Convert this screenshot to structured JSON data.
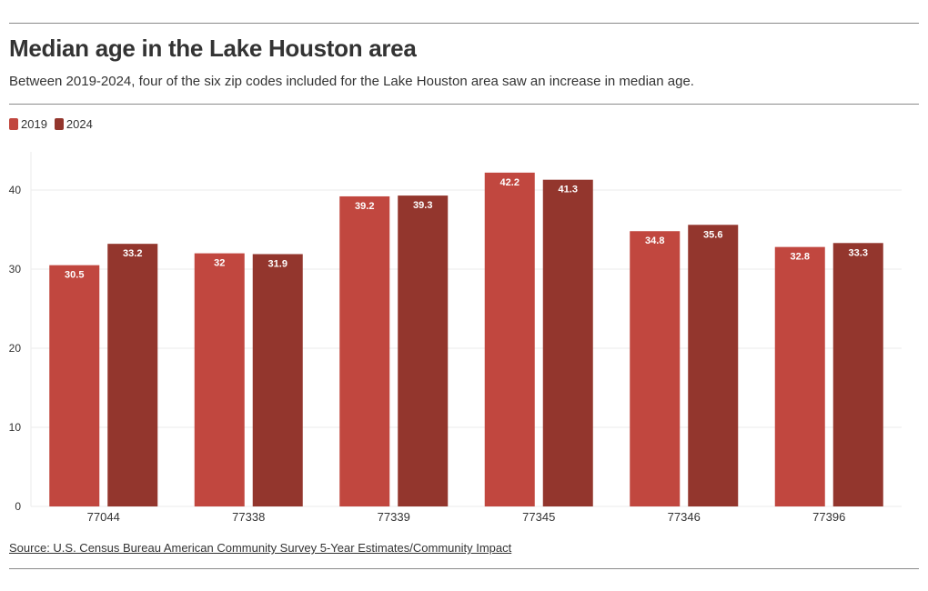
{
  "title": "Median age in the Lake Houston area",
  "subtitle": "Between 2019-2024, four of the six zip codes included for the Lake Houston area saw an increase in median age.",
  "source": "Source: U.S. Census Bureau American Community Survey 5-Year Estimates/Community Impact",
  "colors": {
    "series_2019": "#c1473f",
    "series_2024": "#93362d",
    "grid": "#ebebeb",
    "axis_text": "#333333",
    "label_text": "#ffffff"
  },
  "legend": [
    {
      "label": "2019",
      "color": "#c1473f"
    },
    {
      "label": "2024",
      "color": "#93362d"
    }
  ],
  "chart_data": {
    "type": "bar",
    "title": "Median age in the Lake Houston area",
    "xlabel": "",
    "ylabel": "",
    "categories": [
      "77044",
      "77338",
      "77339",
      "77345",
      "77346",
      "77396"
    ],
    "series": [
      {
        "name": "2019",
        "values": [
          30.5,
          32,
          39.2,
          42.2,
          34.8,
          32.8
        ],
        "labels": [
          "30.5",
          "32",
          "39.2",
          "42.2",
          "34.8",
          "32.8"
        ]
      },
      {
        "name": "2024",
        "values": [
          33.2,
          31.9,
          39.3,
          41.3,
          35.6,
          33.3
        ],
        "labels": [
          "33.2",
          "31.9",
          "39.3",
          "41.3",
          "35.6",
          "33.3"
        ]
      }
    ],
    "ylim": [
      0,
      45
    ],
    "yticks": [
      0,
      10,
      20,
      30,
      40
    ],
    "grid": true,
    "legend_position": "top-left"
  }
}
